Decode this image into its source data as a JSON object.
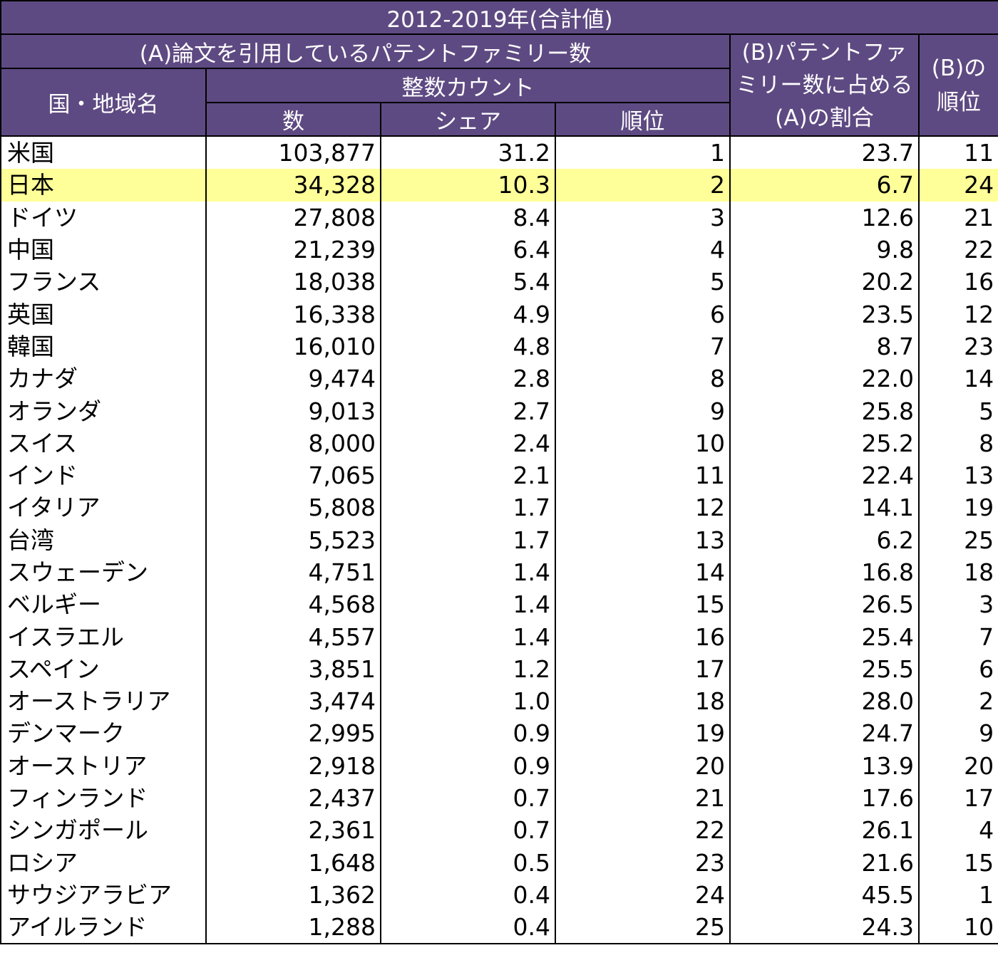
{
  "chart_data": {
    "type": "table",
    "title": "2012-2019年(合計値)",
    "group_header": "(A)論文を引用しているパテントファミリー数",
    "sub_header": "整数カウント",
    "columns": {
      "country": "国・地域名",
      "count": "数",
      "share": "シェア",
      "rank": "順位",
      "ratio": "(B)パテントファミリー数に占める(A)の割合",
      "ratio_rank": "(B)の順位"
    },
    "highlight_color": "#ffff99",
    "header_color": "#5e4a82",
    "highlighted_row": "日本",
    "rows": [
      {
        "country": "米国",
        "count": "103,877",
        "share": "31.2",
        "rank": "1",
        "ratio": "23.7",
        "ratio_rank": "11"
      },
      {
        "country": "日本",
        "count": "34,328",
        "share": "10.3",
        "rank": "2",
        "ratio": "6.7",
        "ratio_rank": "24"
      },
      {
        "country": "ドイツ",
        "count": "27,808",
        "share": "8.4",
        "rank": "3",
        "ratio": "12.6",
        "ratio_rank": "21"
      },
      {
        "country": "中国",
        "count": "21,239",
        "share": "6.4",
        "rank": "4",
        "ratio": "9.8",
        "ratio_rank": "22"
      },
      {
        "country": "フランス",
        "count": "18,038",
        "share": "5.4",
        "rank": "5",
        "ratio": "20.2",
        "ratio_rank": "16"
      },
      {
        "country": "英国",
        "count": "16,338",
        "share": "4.9",
        "rank": "6",
        "ratio": "23.5",
        "ratio_rank": "12"
      },
      {
        "country": "韓国",
        "count": "16,010",
        "share": "4.8",
        "rank": "7",
        "ratio": "8.7",
        "ratio_rank": "23"
      },
      {
        "country": "カナダ",
        "count": "9,474",
        "share": "2.8",
        "rank": "8",
        "ratio": "22.0",
        "ratio_rank": "14"
      },
      {
        "country": "オランダ",
        "count": "9,013",
        "share": "2.7",
        "rank": "9",
        "ratio": "25.8",
        "ratio_rank": "5"
      },
      {
        "country": "スイス",
        "count": "8,000",
        "share": "2.4",
        "rank": "10",
        "ratio": "25.2",
        "ratio_rank": "8"
      },
      {
        "country": "インド",
        "count": "7,065",
        "share": "2.1",
        "rank": "11",
        "ratio": "22.4",
        "ratio_rank": "13"
      },
      {
        "country": "イタリア",
        "count": "5,808",
        "share": "1.7",
        "rank": "12",
        "ratio": "14.1",
        "ratio_rank": "19"
      },
      {
        "country": "台湾",
        "count": "5,523",
        "share": "1.7",
        "rank": "13",
        "ratio": "6.2",
        "ratio_rank": "25"
      },
      {
        "country": "スウェーデン",
        "count": "4,751",
        "share": "1.4",
        "rank": "14",
        "ratio": "16.8",
        "ratio_rank": "18"
      },
      {
        "country": "ベルギー",
        "count": "4,568",
        "share": "1.4",
        "rank": "15",
        "ratio": "26.5",
        "ratio_rank": "3"
      },
      {
        "country": "イスラエル",
        "count": "4,557",
        "share": "1.4",
        "rank": "16",
        "ratio": "25.4",
        "ratio_rank": "7"
      },
      {
        "country": "スペイン",
        "count": "3,851",
        "share": "1.2",
        "rank": "17",
        "ratio": "25.5",
        "ratio_rank": "6"
      },
      {
        "country": "オーストラリア",
        "count": "3,474",
        "share": "1.0",
        "rank": "18",
        "ratio": "28.0",
        "ratio_rank": "2"
      },
      {
        "country": "デンマーク",
        "count": "2,995",
        "share": "0.9",
        "rank": "19",
        "ratio": "24.7",
        "ratio_rank": "9"
      },
      {
        "country": "オーストリア",
        "count": "2,918",
        "share": "0.9",
        "rank": "20",
        "ratio": "13.9",
        "ratio_rank": "20"
      },
      {
        "country": "フィンランド",
        "count": "2,437",
        "share": "0.7",
        "rank": "21",
        "ratio": "17.6",
        "ratio_rank": "17"
      },
      {
        "country": "シンガポール",
        "count": "2,361",
        "share": "0.7",
        "rank": "22",
        "ratio": "26.1",
        "ratio_rank": "4"
      },
      {
        "country": "ロシア",
        "count": "1,648",
        "share": "0.5",
        "rank": "23",
        "ratio": "21.6",
        "ratio_rank": "15"
      },
      {
        "country": "サウジアラビア",
        "count": "1,362",
        "share": "0.4",
        "rank": "24",
        "ratio": "45.5",
        "ratio_rank": "1"
      },
      {
        "country": "アイルランド",
        "count": "1,288",
        "share": "0.4",
        "rank": "25",
        "ratio": "24.3",
        "ratio_rank": "10"
      }
    ]
  }
}
